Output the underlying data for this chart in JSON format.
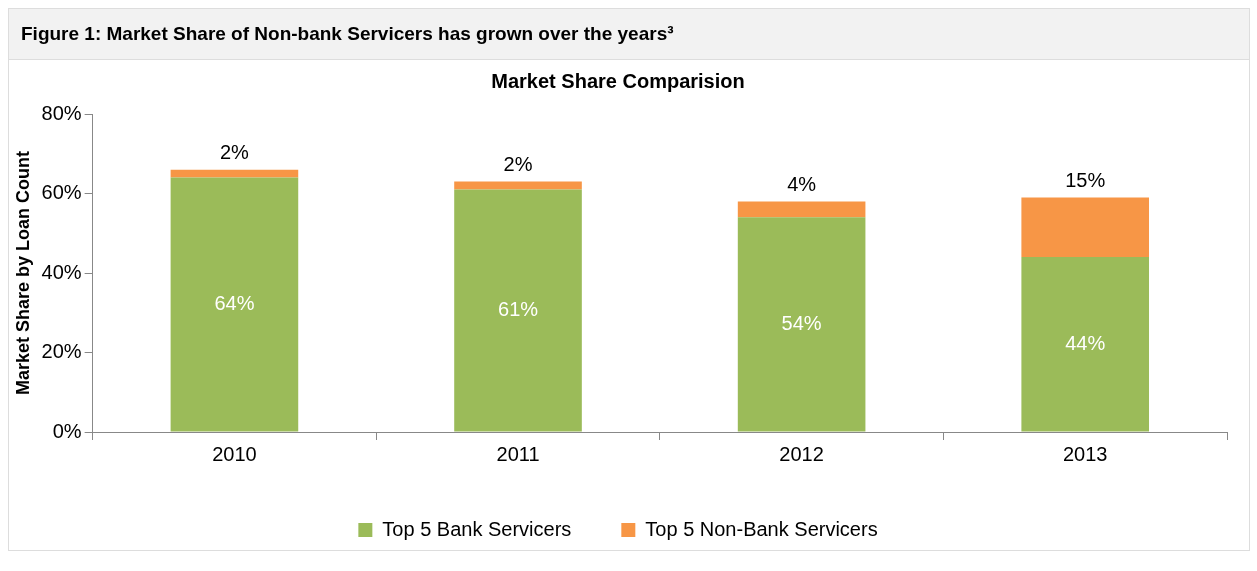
{
  "chart_data": {
    "type": "bar",
    "title": "Market Share Comparision",
    "subtitle": "Figure 1: Market Share of Non-bank Servicers has grown over the years³",
    "ylabel": "Market Share by Loan Count",
    "categories": [
      "2010",
      "2011",
      "2012",
      "2013"
    ],
    "stacked": true,
    "ylim": [
      0,
      80
    ],
    "yticks": [
      {
        "value": 0,
        "label": "0%"
      },
      {
        "value": 20,
        "label": "20%"
      },
      {
        "value": 40,
        "label": "40%"
      },
      {
        "value": 60,
        "label": "60%"
      },
      {
        "value": 80,
        "label": "80%"
      }
    ],
    "grid": false,
    "legend": "bottom",
    "series": [
      {
        "name": "Top 5 Bank Servicers",
        "color": "#9bbb59",
        "values": [
          64,
          61,
          54,
          44
        ],
        "value_labels": [
          "64%",
          "61%",
          "54%",
          "44%"
        ]
      },
      {
        "name": "Top 5 Non-Bank Servicers",
        "color": "#f79646",
        "values": [
          2,
          2,
          4,
          15
        ],
        "value_labels": [
          "2%",
          "2%",
          "4%",
          "15%"
        ]
      }
    ]
  }
}
